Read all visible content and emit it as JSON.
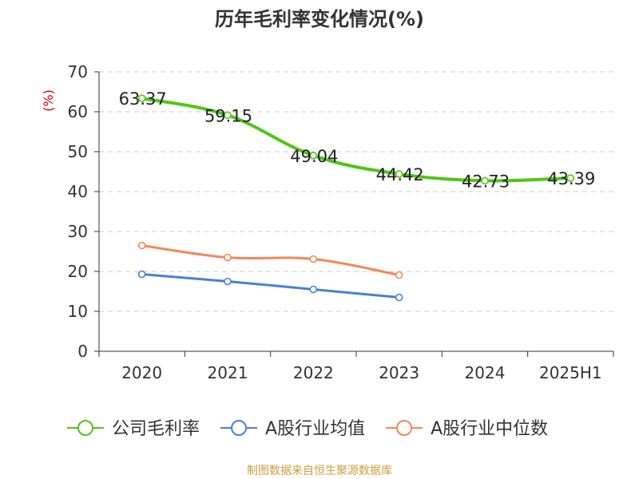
{
  "chart_data": {
    "type": "line",
    "title": "历年毛利率变化情况(%)",
    "ylabel": "(%)",
    "xlabel": "",
    "categories": [
      "2020",
      "2021",
      "2022",
      "2023",
      "2024",
      "2025H1"
    ],
    "ylim": [
      0,
      70
    ],
    "yticks": [
      0,
      10,
      20,
      30,
      40,
      50,
      60,
      70
    ],
    "grid": "horizontal-dashed",
    "legend_position": "bottom",
    "series": [
      {
        "name": "公司毛利率",
        "color": "#52c41a",
        "values": [
          63.37,
          59.15,
          49.04,
          44.42,
          42.73,
          43.39
        ],
        "labels": [
          "63.37",
          "59.15",
          "49.04",
          "44.42",
          "42.73",
          "43.39"
        ]
      },
      {
        "name": "A股行业均值",
        "color": "#4a7fd6",
        "values": [
          19.3,
          17.5,
          15.5,
          13.5,
          null,
          null
        ]
      },
      {
        "name": "A股行业中位数",
        "color": "#f4875a",
        "values": [
          26.5,
          23.5,
          23.1,
          19.1,
          null,
          null
        ]
      }
    ]
  },
  "source": "制图数据来自恒生聚源数据库",
  "colors": {
    "title": "#333333",
    "axis": "#333333",
    "ylabel": "#cc0000",
    "source": "#c9a13c",
    "grid": "#cccccc"
  }
}
